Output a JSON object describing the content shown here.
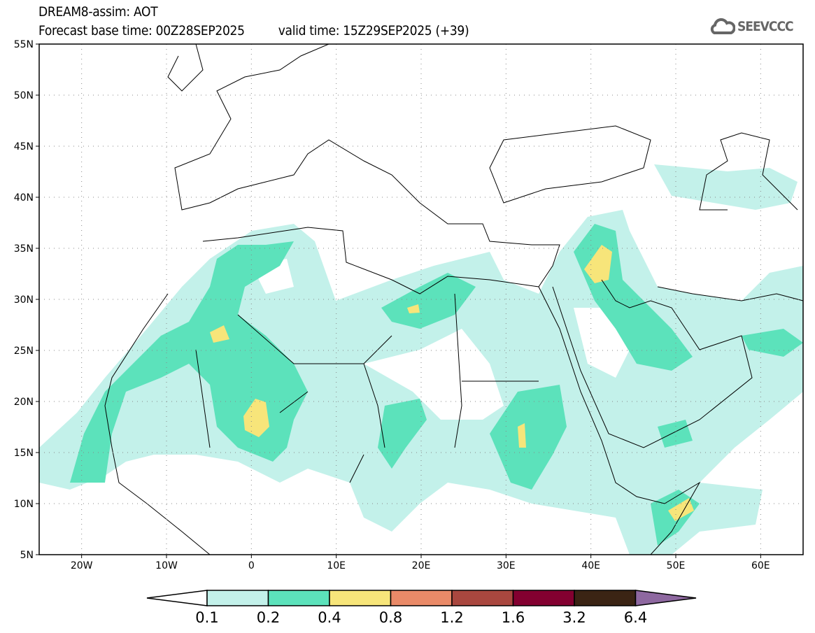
{
  "header": {
    "title": "DREAM8-assim: AOT",
    "base_time": "Forecast base time: 00Z28SEP2025",
    "valid_time": "valid time: 15Z29SEP2025 (+39)",
    "logo_text": "SEEVCCC"
  },
  "map": {
    "lat_labels": [
      "55N",
      "50N",
      "45N",
      "40N",
      "35N",
      "30N",
      "25N",
      "20N",
      "15N",
      "10N",
      "5N"
    ],
    "lon_labels": [
      "20W",
      "10W",
      "0",
      "10E",
      "20E",
      "30E",
      "40E",
      "50E",
      "60E"
    ],
    "lon_range": [
      -25,
      65
    ],
    "lat_range": [
      5,
      55
    ]
  },
  "colorbar": {
    "labels": [
      "0.1",
      "0.2",
      "0.4",
      "0.8",
      "1.2",
      "1.6",
      "3.2",
      "6.4"
    ],
    "colors": [
      "#ffffff",
      "#c3f1ea",
      "#5ce2bb",
      "#f7e57a",
      "#ea8a68",
      "#a9473f",
      "#830030",
      "#3b2414",
      "#8e68a0"
    ]
  }
}
